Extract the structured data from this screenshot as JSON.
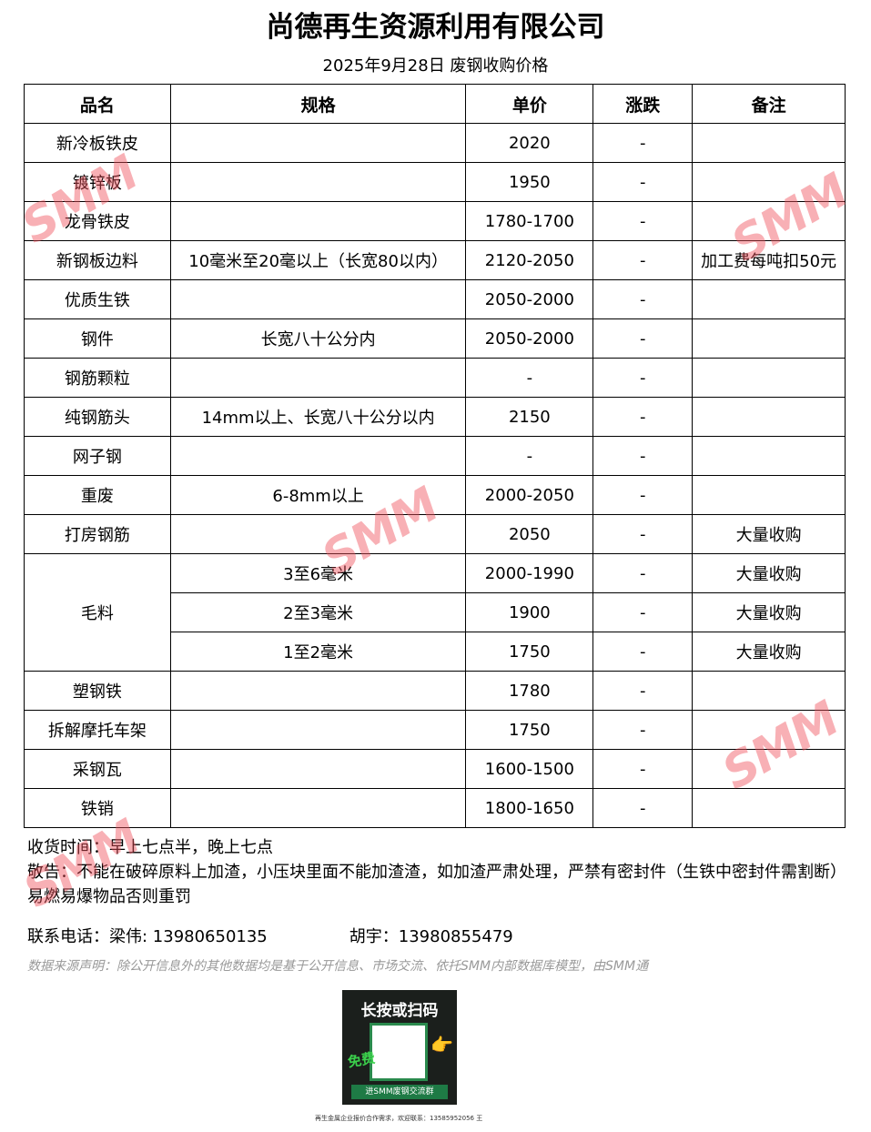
{
  "title": "尚德再生资源利用有限公司",
  "subtitle": "2025年9月28日 废钢收购价格",
  "table": {
    "headers": [
      "品名",
      "规格",
      "单价",
      "涨跌",
      "备注"
    ],
    "rows": [
      {
        "name": "新冷板铁皮",
        "spec": "",
        "price": "2020",
        "change": "-",
        "note": ""
      },
      {
        "name": "镀锌板",
        "spec": "",
        "price": "1950",
        "change": "-",
        "note": ""
      },
      {
        "name": "龙骨铁皮",
        "spec": "",
        "price": "1780-1700",
        "change": "-",
        "note": ""
      },
      {
        "name": "新钢板边料",
        "spec": "10毫米至20毫以上（长宽80以内）",
        "price": "2120-2050",
        "change": "-",
        "note": "加工费每吨扣50元"
      },
      {
        "name": "优质生铁",
        "spec": "",
        "price": "2050-2000",
        "change": "-",
        "note": ""
      },
      {
        "name": "钢件",
        "spec": "长宽八十公分内",
        "price": "2050-2000",
        "change": "-",
        "note": ""
      },
      {
        "name": "钢筋颗粒",
        "spec": "",
        "price": "-",
        "change": "-",
        "note": ""
      },
      {
        "name": "纯钢筋头",
        "spec": "14mm以上、长宽八十公分以内",
        "price": "2150",
        "change": "-",
        "note": ""
      },
      {
        "name": "网子钢",
        "spec": "",
        "price": "-",
        "change": "-",
        "note": ""
      },
      {
        "name": "重废",
        "spec": "6-8mm以上",
        "price": "2000-2050",
        "change": "-",
        "note": ""
      },
      {
        "name": "打房钢筋",
        "spec": "",
        "price": "2050",
        "change": "-",
        "note": "大量收购"
      }
    ],
    "maoliao": {
      "name": "毛料",
      "rows": [
        {
          "spec": "3至6毫米",
          "price": "2000-1990",
          "change": "-",
          "note": "大量收购"
        },
        {
          "spec": "2至3毫米",
          "price": "1900",
          "change": "-",
          "note": "大量收购"
        },
        {
          "spec": "1至2毫米",
          "price": "1750",
          "change": "-",
          "note": "大量收购"
        }
      ]
    },
    "rows2": [
      {
        "name": "塑钢铁",
        "spec": "",
        "price": "1780",
        "change": "-",
        "note": ""
      },
      {
        "name": "拆解摩托车架",
        "spec": "",
        "price": "1750",
        "change": "-",
        "note": ""
      },
      {
        "name": "采钢瓦",
        "spec": "",
        "price": "1600-1500",
        "change": "-",
        "note": ""
      },
      {
        "name": "铁销",
        "spec": "",
        "price": "1800-1650",
        "change": "-",
        "note": ""
      }
    ]
  },
  "notes": {
    "hours": "收货时间：早上七点半，晚上七点",
    "warning": "敬告：不能在破碎原料上加渣，小压块里面不能加渣渣，如加渣严肃处理，严禁有密封件（生铁中密封件需割断）易燃易爆物品否则重罚"
  },
  "contact": {
    "label": "联系电话：梁伟: 13980650135",
    "second": "胡宇：13980855479"
  },
  "disclaimer": "数据来源声明：除公开信息外的其他数据均是基于公开信息、市场交流、依托SMM内部数据库模型，由SMM通",
  "qr": {
    "heading": "长按或扫码",
    "free": "免费",
    "banner": "进SMM废钢交流群"
  },
  "footer": "再生金属企业报价合作需求，欢迎联系：13585952056 王",
  "watermark": "SMM",
  "watermark_color": "#f0505a"
}
